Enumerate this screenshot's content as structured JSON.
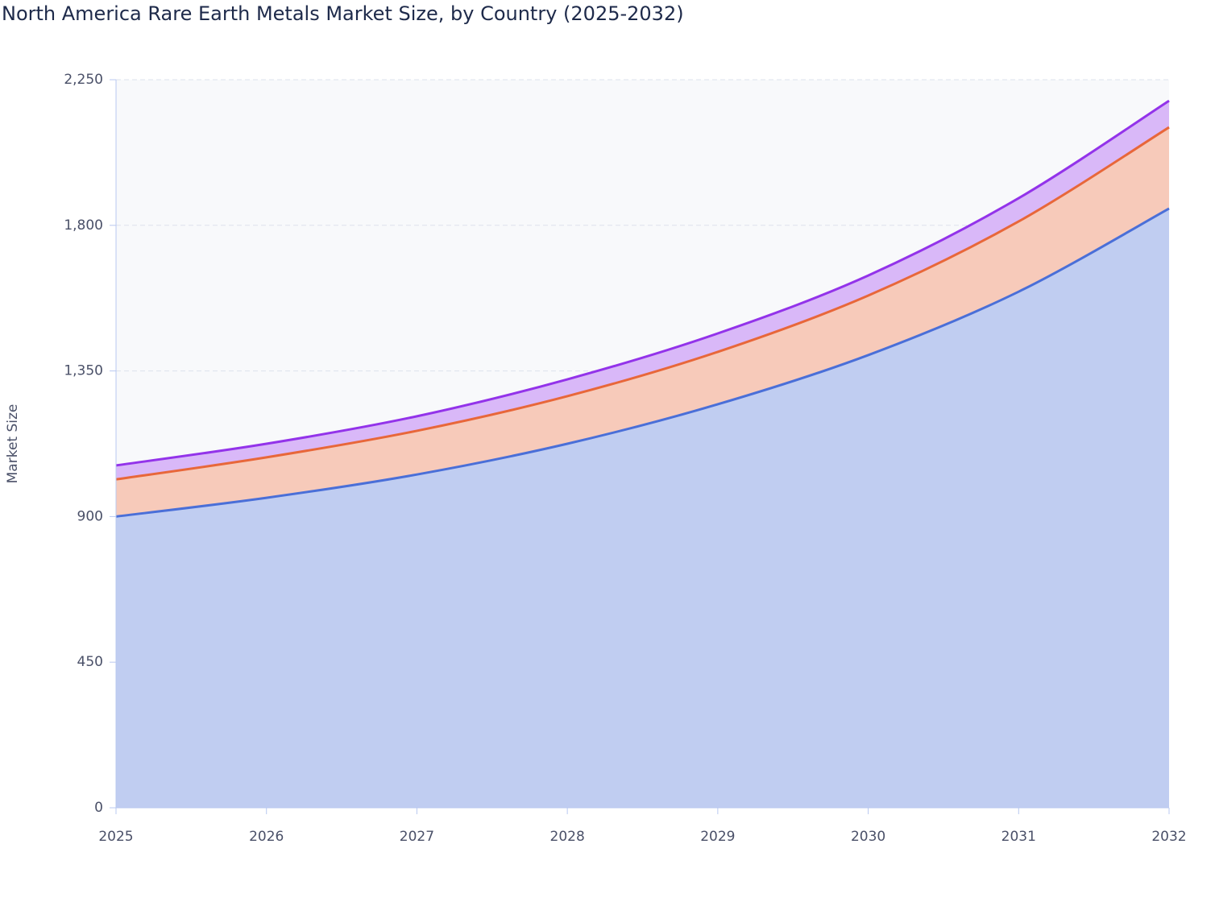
{
  "chart_data": {
    "type": "stacked-area",
    "title": "North America Rare Earth Metals Market Size, by Country (2025-2032)",
    "y_label": "Market Size",
    "x": [
      2025,
      2026,
      2027,
      2028,
      2029,
      2030,
      2031,
      2032
    ],
    "series": [
      {
        "color": "#4a6fd8",
        "values": [
          900,
          958,
          1030,
          1125,
          1247,
          1399,
          1595,
          1852
        ]
      },
      {
        "color": "#e8673a",
        "values": [
          115,
          125,
          135,
          147,
          162,
          184,
          217,
          251
        ]
      },
      {
        "color": "#9333ea",
        "values": [
          43,
          42,
          45,
          52,
          57,
          62,
          72,
          82
        ]
      }
    ],
    "xlim": [
      2025,
      2032
    ],
    "xticks": [
      2025,
      2026,
      2027,
      2028,
      2029,
      2030,
      2031,
      2032
    ],
    "ylim": [
      0,
      2250
    ],
    "yticks": [
      0,
      450,
      900,
      {
        "value": 1350,
        "label": "1,350"
      },
      {
        "value": 1800,
        "label": "1,800"
      },
      {
        "value": 2250,
        "label": "2,250"
      }
    ],
    "grid": true
  }
}
